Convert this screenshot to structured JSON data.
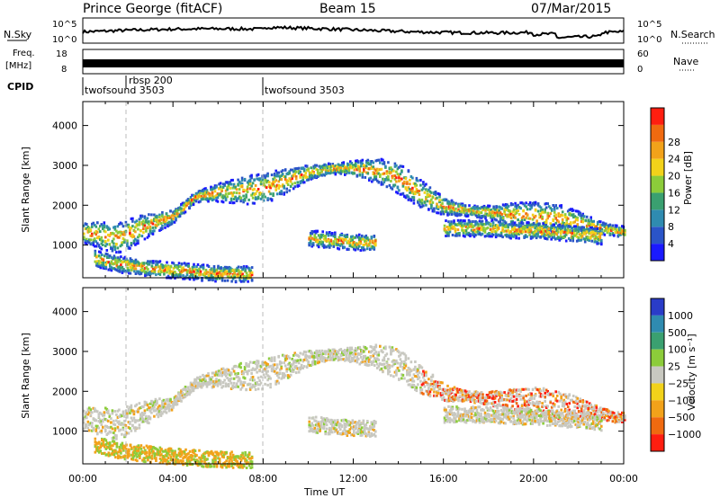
{
  "header": {
    "station": "Prince George (fitACF)",
    "beam": "Beam 15",
    "date": "07/Mar/2015"
  },
  "noise_panel": {
    "left_label": "N.Sky",
    "right_label": "N.Search",
    "left_ticks": [
      "10^5",
      "10^0"
    ],
    "right_ticks": [
      "10^5",
      "10^0"
    ]
  },
  "freq_panel": {
    "left_label_1": "Freq.",
    "left_label_2": "[MHz]",
    "right_label": "Nave",
    "left_ticks": [
      "18",
      "8"
    ],
    "right_ticks": [
      "60",
      "0"
    ]
  },
  "cpid": {
    "label": "CPID",
    "programs": [
      {
        "name": "twofsound 3503",
        "start_hour": 0.0
      },
      {
        "name": "rbsp 200",
        "start_hour": 1.9
      },
      {
        "name": "twofsound 3503",
        "start_hour": 8.0
      }
    ]
  },
  "power_panel": {
    "ylabel": "Slant Range [km]",
    "ytick_labels": [
      "1000",
      "2000",
      "3000",
      "4000"
    ],
    "cbar_title": "Power [dB]",
    "cbar_ticks": [
      "4",
      "8",
      "12",
      "16",
      "20",
      "24",
      "28"
    ],
    "colors": [
      "#1a1aff",
      "#2a54c8",
      "#2f8bb0",
      "#3aa070",
      "#8ccc3a",
      "#f2d21a",
      "#f2a21a",
      "#f06a10",
      "#ff1e10"
    ]
  },
  "velocity_panel": {
    "ylabel": "Slant Range [km]",
    "ytick_labels": [
      "1000",
      "2000",
      "3000",
      "4000"
    ],
    "cbar_title": "Velocity [m s⁻¹]",
    "cbar_ticks": [
      "1000",
      "500",
      "100",
      "25",
      "−25",
      "−100",
      "−500",
      "−1000"
    ],
    "colors": [
      "#2a3cc8",
      "#2f8bb0",
      "#3aa070",
      "#8ccc3a",
      "#c8c8c0",
      "#f2d21a",
      "#f2a21a",
      "#f06a10",
      "#ff1e10"
    ]
  },
  "xaxis": {
    "label": "Time UT",
    "tick_labels": [
      "00:00",
      "04:00",
      "08:00",
      "12:00",
      "16:00",
      "20:00",
      "00:00"
    ]
  },
  "chart_data": {
    "type": "heatmap",
    "x_unit": "hours UT",
    "xlim": [
      0,
      24
    ],
    "ylim_km": [
      180,
      4600
    ],
    "echo_bands": [
      {
        "points": [
          [
            0.0,
            1350
          ],
          [
            0.5,
            1300
          ],
          [
            1.0,
            1250
          ],
          [
            1.5,
            1200
          ],
          [
            2.0,
            1300
          ],
          [
            2.5,
            1450
          ],
          [
            3.0,
            1550
          ],
          [
            3.5,
            1650
          ],
          [
            4.0,
            1750
          ],
          [
            4.5,
            2000
          ],
          [
            5.0,
            2250
          ],
          [
            5.5,
            2300
          ],
          [
            6.0,
            2350
          ],
          [
            7.0,
            2400
          ],
          [
            8.0,
            2450
          ],
          [
            9.0,
            2650
          ],
          [
            10.0,
            2850
          ],
          [
            11.0,
            2950
          ],
          [
            12.0,
            2950
          ],
          [
            13.0,
            2900
          ],
          [
            14.0,
            2700
          ],
          [
            15.0,
            2300
          ],
          [
            16.0,
            2000
          ],
          [
            17.0,
            1900
          ],
          [
            18.0,
            1850
          ],
          [
            19.0,
            1800
          ],
          [
            20.0,
            1750
          ],
          [
            21.0,
            1700
          ],
          [
            22.0,
            1600
          ],
          [
            23.0,
            1450
          ],
          [
            24.0,
            1350
          ]
        ]
      },
      {
        "points": [
          [
            16.0,
            1450
          ],
          [
            17.0,
            1450
          ],
          [
            18.0,
            1450
          ],
          [
            19.0,
            1400
          ],
          [
            20.0,
            1400
          ],
          [
            21.0,
            1350
          ],
          [
            22.0,
            1300
          ],
          [
            23.0,
            1250
          ]
        ]
      },
      {
        "points": [
          [
            0.5,
            700
          ],
          [
            1.5,
            550
          ],
          [
            2.5,
            480
          ],
          [
            3.5,
            420
          ],
          [
            4.5,
            380
          ],
          [
            5.5,
            330
          ],
          [
            6.5,
            310
          ],
          [
            7.5,
            300
          ]
        ]
      },
      {
        "points": [
          [
            10.0,
            1200
          ],
          [
            11.0,
            1150
          ],
          [
            12.0,
            1100
          ],
          [
            13.0,
            1100
          ]
        ]
      }
    ]
  }
}
